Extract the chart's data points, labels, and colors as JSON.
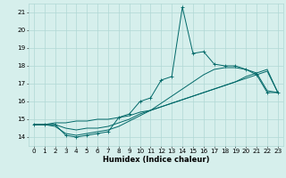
{
  "title": "",
  "xlabel": "Humidex (Indice chaleur)",
  "bg_color": "#d6efec",
  "grid_color": "#b0d8d4",
  "line_color": "#006868",
  "xlim": [
    -0.5,
    23.5
  ],
  "ylim": [
    13.5,
    21.5
  ],
  "yticks": [
    14,
    15,
    16,
    17,
    18,
    19,
    20,
    21
  ],
  "xticks": [
    0,
    1,
    2,
    3,
    4,
    5,
    6,
    7,
    8,
    9,
    10,
    11,
    12,
    13,
    14,
    15,
    16,
    17,
    18,
    19,
    20,
    21,
    22,
    23
  ],
  "main_line": [
    14.7,
    14.7,
    14.7,
    14.1,
    14.0,
    14.1,
    14.2,
    14.3,
    15.1,
    15.3,
    16.0,
    16.2,
    17.2,
    17.4,
    21.3,
    18.7,
    18.8,
    18.1,
    18.0,
    18.0,
    17.8,
    17.5,
    16.5,
    16.5
  ],
  "line2": [
    14.7,
    14.7,
    14.7,
    14.5,
    14.4,
    14.5,
    14.5,
    14.6,
    14.8,
    15.0,
    15.3,
    15.5,
    15.7,
    15.9,
    16.1,
    16.3,
    16.5,
    16.7,
    16.9,
    17.1,
    17.3,
    17.5,
    17.7,
    16.5
  ],
  "line3": [
    14.7,
    14.7,
    14.8,
    14.8,
    14.9,
    14.9,
    15.0,
    15.0,
    15.1,
    15.2,
    15.4,
    15.5,
    15.7,
    15.9,
    16.1,
    16.3,
    16.5,
    16.7,
    16.9,
    17.1,
    17.4,
    17.6,
    17.8,
    16.5
  ],
  "line4": [
    14.7,
    14.7,
    14.6,
    14.2,
    14.1,
    14.2,
    14.3,
    14.4,
    14.6,
    14.9,
    15.2,
    15.5,
    15.9,
    16.3,
    16.7,
    17.1,
    17.5,
    17.8,
    17.9,
    17.9,
    17.8,
    17.6,
    16.6,
    16.5
  ],
  "xlabel_fontsize": 6.0,
  "tick_fontsize": 5.2,
  "linewidth": 0.7,
  "marker_size": 2.5
}
